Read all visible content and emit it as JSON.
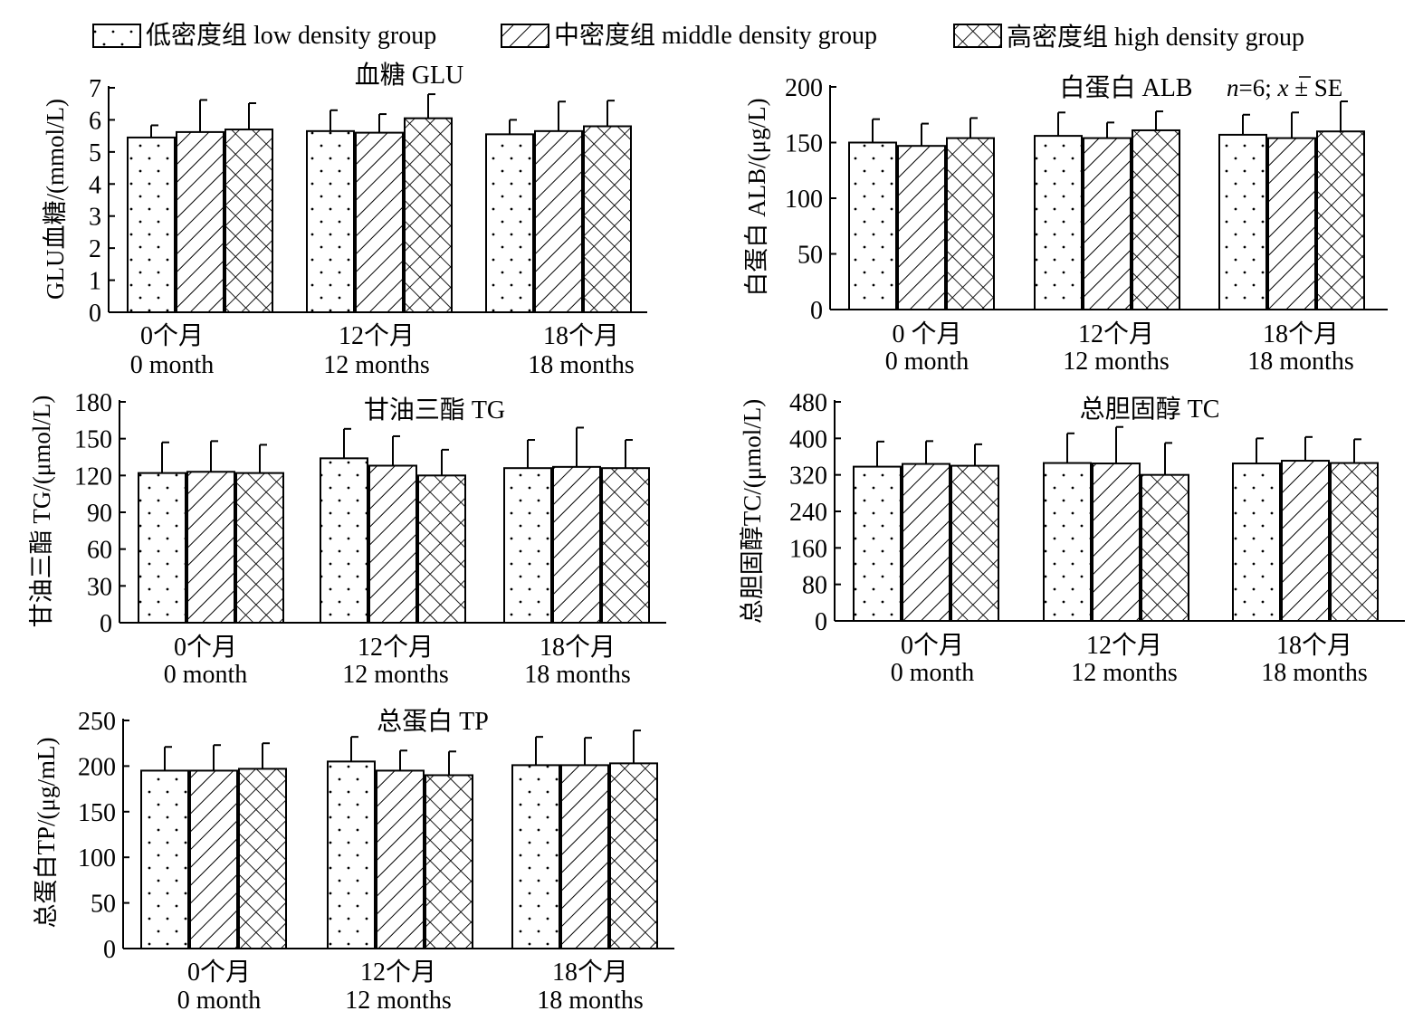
{
  "legend": [
    {
      "label": "低密度组 low density group",
      "pattern": "dots"
    },
    {
      "label": "中密度组 middle density group",
      "pattern": "diag"
    },
    {
      "label": "高密度组 high density group",
      "pattern": "cross"
    }
  ],
  "annotation": {
    "n_label": "n",
    "n_value": "=6; ",
    "mean_symbol": "x",
    "pm_se": " ± SE"
  },
  "chart_data": [
    {
      "type": "bar",
      "title": "血糖 GLU",
      "ylabel": "GLU血糖/(mmol/L)",
      "ylim": [
        0,
        7
      ],
      "yticks": [
        0,
        1,
        2,
        3,
        4,
        5,
        6,
        7
      ],
      "categories": [
        [
          "0个月",
          "0 month"
        ],
        [
          "12个月",
          "12 months"
        ],
        [
          "18个月",
          "18 months"
        ]
      ],
      "series": [
        {
          "values": [
            5.45,
            5.65,
            5.55
          ],
          "errors": [
            0.38,
            0.65,
            0.45
          ]
        },
        {
          "values": [
            5.62,
            5.6,
            5.65
          ],
          "errors": [
            1.0,
            0.58,
            0.92
          ]
        },
        {
          "values": [
            5.7,
            6.05,
            5.8
          ],
          "errors": [
            0.82,
            0.75,
            0.8
          ]
        }
      ]
    },
    {
      "type": "bar",
      "title": "白蛋白 ALB",
      "ylabel": "白蛋白 ALB/(μg/L)",
      "ylim": [
        0,
        200
      ],
      "yticks": [
        0,
        50,
        100,
        150,
        200
      ],
      "categories": [
        [
          "0 个月",
          "0 month"
        ],
        [
          "12个月",
          "12 months"
        ],
        [
          "18个月",
          "18 months"
        ]
      ],
      "series": [
        {
          "values": [
            150,
            156,
            157
          ],
          "errors": [
            21,
            21,
            18
          ]
        },
        {
          "values": [
            147,
            154,
            154
          ],
          "errors": [
            20,
            14,
            23
          ]
        },
        {
          "values": [
            154,
            161,
            160
          ],
          "errors": [
            18,
            17,
            27
          ]
        }
      ]
    },
    {
      "type": "bar",
      "title": "甘油三酯 TG",
      "ylabel": "甘油三酯 TG/(μmol/L)",
      "ylim": [
        0,
        180
      ],
      "yticks": [
        0,
        30,
        60,
        90,
        120,
        150,
        180
      ],
      "categories": [
        [
          "0个月",
          "0 month"
        ],
        [
          "12个月",
          "12 months"
        ],
        [
          "18个月",
          "18 months"
        ]
      ],
      "series": [
        {
          "values": [
            122,
            134,
            126
          ],
          "errors": [
            25,
            24,
            23
          ]
        },
        {
          "values": [
            123,
            128,
            127
          ],
          "errors": [
            25,
            24,
            32
          ]
        },
        {
          "values": [
            122,
            120,
            126
          ],
          "errors": [
            23,
            21,
            23
          ]
        }
      ]
    },
    {
      "type": "bar",
      "title": "总胆固醇 TC",
      "ylabel": "总胆固醇TC/(μmol/L)",
      "ylim": [
        0,
        480
      ],
      "yticks": [
        0,
        80,
        160,
        240,
        320,
        400,
        480
      ],
      "categories": [
        [
          "0个月",
          "0 month"
        ],
        [
          "12个月",
          "12 months"
        ],
        [
          "18个月",
          "18 months"
        ]
      ],
      "series": [
        {
          "values": [
            338,
            346,
            345
          ],
          "errors": [
            55,
            65,
            55
          ]
        },
        {
          "values": [
            344,
            345,
            351
          ],
          "errors": [
            50,
            80,
            52
          ]
        },
        {
          "values": [
            340,
            320,
            346
          ],
          "errors": [
            47,
            70,
            52
          ]
        }
      ]
    },
    {
      "type": "bar",
      "title": "总蛋白 TP",
      "ylabel": "总蛋白TP/(μg/mL)",
      "ylim": [
        0,
        250
      ],
      "yticks": [
        0,
        50,
        100,
        150,
        200,
        250
      ],
      "categories": [
        [
          "0个月",
          "0 month"
        ],
        [
          "12个月",
          "12 months"
        ],
        [
          "18个月",
          "18 months"
        ]
      ],
      "series": [
        {
          "values": [
            195,
            205,
            201
          ],
          "errors": [
            26,
            27,
            31
          ]
        },
        {
          "values": [
            195,
            195,
            201
          ],
          "errors": [
            28,
            22,
            30
          ]
        },
        {
          "values": [
            197,
            190,
            203
          ],
          "errors": [
            28,
            26,
            36
          ]
        }
      ]
    }
  ]
}
